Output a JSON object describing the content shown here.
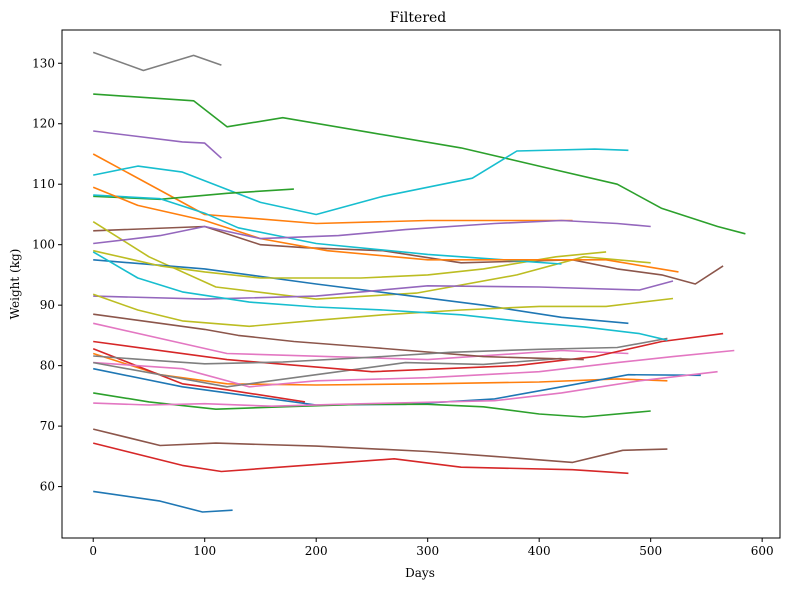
{
  "chart_data": {
    "type": "line",
    "title": "Filtered",
    "xlabel": "Days",
    "ylabel": "Weight (kg)",
    "xlim": [
      -28,
      616
    ],
    "ylim": [
      51.5,
      135.5
    ],
    "xticks": [
      0,
      100,
      200,
      300,
      400,
      500,
      600
    ],
    "yticks": [
      60,
      70,
      80,
      90,
      100,
      110,
      120,
      130
    ],
    "grid": false,
    "legend": "none",
    "palette": [
      "#1f77b4",
      "#ff7f0e",
      "#2ca02c",
      "#d62728",
      "#9467bd",
      "#8c564b",
      "#e377c2",
      "#7f7f7f",
      "#bcbd22",
      "#17becf"
    ],
    "series": [
      {
        "x": [
          0,
          60,
          98,
          125
        ],
        "y": [
          59.2,
          57.6,
          55.8,
          56.1
        ]
      },
      {
        "x": [
          0,
          100,
          200,
          300,
          430
        ],
        "y": [
          115,
          105,
          103.5,
          104,
          104
        ]
      },
      {
        "x": [
          0,
          90,
          120,
          170,
          250,
          330,
          400,
          470,
          510,
          560,
          585
        ],
        "y": [
          124.9,
          123.8,
          119.5,
          121.0,
          118.5,
          116,
          113,
          110,
          106,
          103,
          101.8
        ]
      },
      {
        "x": [
          0,
          80,
          115,
          270,
          330,
          430,
          480
        ],
        "y": [
          67.2,
          63.5,
          62.5,
          64.6,
          63.2,
          62.8,
          62.2
        ]
      },
      {
        "x": [
          0,
          80,
          100,
          115
        ],
        "y": [
          118.8,
          117,
          116.8,
          114.3
        ]
      },
      {
        "x": [
          0,
          100,
          150,
          190,
          260,
          330,
          430,
          470,
          510,
          540,
          565
        ],
        "y": [
          102.3,
          103,
          100,
          99.5,
          99,
          97,
          97.5,
          96,
          95,
          93.5,
          96.5
        ]
      },
      {
        "x": [
          0,
          120,
          300,
          420,
          480
        ],
        "y": [
          87,
          82,
          81,
          82.5,
          82
        ]
      },
      {
        "x": [
          0,
          45,
          90,
          115
        ],
        "y": [
          131.8,
          128.8,
          131.3,
          129.7
        ]
      },
      {
        "x": [
          0,
          50,
          110,
          200,
          290,
          380,
          440,
          500
        ],
        "y": [
          103.8,
          98,
          93,
          91,
          92,
          95,
          98,
          97
        ]
      },
      {
        "x": [
          0,
          40,
          80,
          150,
          200,
          260,
          340,
          380,
          450,
          480
        ],
        "y": [
          111.5,
          113,
          112,
          107,
          105,
          108,
          111,
          115.5,
          115.8,
          115.6
        ]
      },
      {
        "x": [
          0,
          100,
          200,
          350,
          420,
          480
        ],
        "y": [
          97.5,
          96,
          93.5,
          90,
          88,
          87
        ]
      },
      {
        "x": [
          0,
          60,
          120,
          200,
          300,
          400,
          470,
          515
        ],
        "y": [
          82,
          78.5,
          77,
          76.8,
          77,
          77.3,
          77.8,
          77.5
        ]
      },
      {
        "x": [
          0,
          60,
          120,
          180
        ],
        "y": [
          108,
          107.5,
          108.5,
          109.2
        ]
      },
      {
        "x": [
          0,
          80,
          120,
          190
        ],
        "y": [
          82.8,
          77,
          76,
          74
        ]
      },
      {
        "x": [
          0,
          100,
          200,
          300,
          400,
          490,
          520
        ],
        "y": [
          91.5,
          91,
          91.5,
          93.2,
          93,
          92.5,
          94
        ]
      },
      {
        "x": [
          0,
          60,
          110,
          200,
          300,
          360,
          430,
          475,
          515
        ],
        "y": [
          69.5,
          66.8,
          67.2,
          66.7,
          65.8,
          65,
          64,
          66,
          66.2
        ]
      },
      {
        "x": [
          0,
          80,
          140,
          200,
          300,
          400,
          470,
          520,
          575
        ],
        "y": [
          80.5,
          79.5,
          76.5,
          77.5,
          78,
          79,
          80.5,
          81.5,
          82.5
        ]
      },
      {
        "x": [
          0,
          120,
          200,
          280,
          350,
          420
        ],
        "y": [
          80.5,
          76.5,
          78.5,
          80.5,
          80.2,
          81.2
        ]
      },
      {
        "x": [
          0,
          60,
          100,
          150,
          240,
          300,
          350,
          415,
          460
        ],
        "y": [
          99,
          96.5,
          95.5,
          94.5,
          94.5,
          95,
          96,
          98,
          98.8
        ]
      },
      {
        "x": [
          0,
          60,
          100,
          130,
          200,
          300,
          420
        ],
        "y": [
          108.2,
          107.6,
          105.2,
          102.8,
          100.2,
          98.4,
          96.8
        ]
      },
      {
        "x": [
          0,
          80,
          140,
          200,
          280,
          360,
          420,
          480,
          545
        ],
        "y": [
          79.5,
          76.5,
          75,
          73.5,
          73.6,
          74.5,
          76.5,
          78.5,
          78.4
        ]
      },
      {
        "x": [
          0,
          40,
          100,
          150,
          210,
          300,
          400,
          460,
          525
        ],
        "y": [
          109.5,
          106.5,
          104,
          101,
          99,
          97.5,
          97.5,
          97.5,
          95.5
        ]
      },
      {
        "x": [
          0,
          50,
          110,
          170,
          240,
          300,
          350,
          400,
          440,
          500
        ],
        "y": [
          75.5,
          74,
          72.8,
          73.2,
          73.6,
          73.6,
          73.2,
          72,
          71.5,
          72.5
        ]
      },
      {
        "x": [
          0,
          120,
          250,
          380,
          450,
          510,
          565
        ],
        "y": [
          84,
          81,
          79,
          80,
          81.5,
          84,
          85.3
        ]
      },
      {
        "x": [
          0,
          60,
          100,
          150,
          220,
          280,
          360,
          420,
          470,
          500
        ],
        "y": [
          100.2,
          101.5,
          103,
          101,
          101.5,
          102.5,
          103.5,
          104,
          103.5,
          103
        ]
      },
      {
        "x": [
          0,
          60,
          100,
          130,
          180,
          250,
          350,
          440
        ],
        "y": [
          88.5,
          87,
          86,
          85,
          84,
          83,
          81.5,
          81
        ]
      },
      {
        "x": [
          0,
          50,
          100,
          160,
          220,
          290,
          360,
          420,
          490,
          560
        ],
        "y": [
          73.8,
          73.5,
          73.7,
          73.3,
          73.6,
          73.9,
          74.2,
          75.5,
          77.5,
          79
        ]
      },
      {
        "x": [
          0,
          60,
          100,
          170,
          250,
          320,
          400,
          470,
          515
        ],
        "y": [
          81.6,
          80.8,
          80.3,
          80.6,
          81.4,
          82.2,
          82.7,
          83,
          84.5
        ]
      },
      {
        "x": [
          0,
          40,
          80,
          140,
          200,
          260,
          330,
          400,
          460,
          520
        ],
        "y": [
          91.8,
          89.2,
          87.4,
          86.5,
          87.5,
          88.4,
          89.2,
          89.8,
          89.8,
          91.1
        ]
      },
      {
        "x": [
          0,
          40,
          80,
          140,
          200,
          260,
          330,
          390,
          440,
          490,
          515
        ],
        "y": [
          98.8,
          94.5,
          92.2,
          90.5,
          89.7,
          89.2,
          88.4,
          87.2,
          86.4,
          85.3,
          84.2
        ]
      }
    ]
  }
}
